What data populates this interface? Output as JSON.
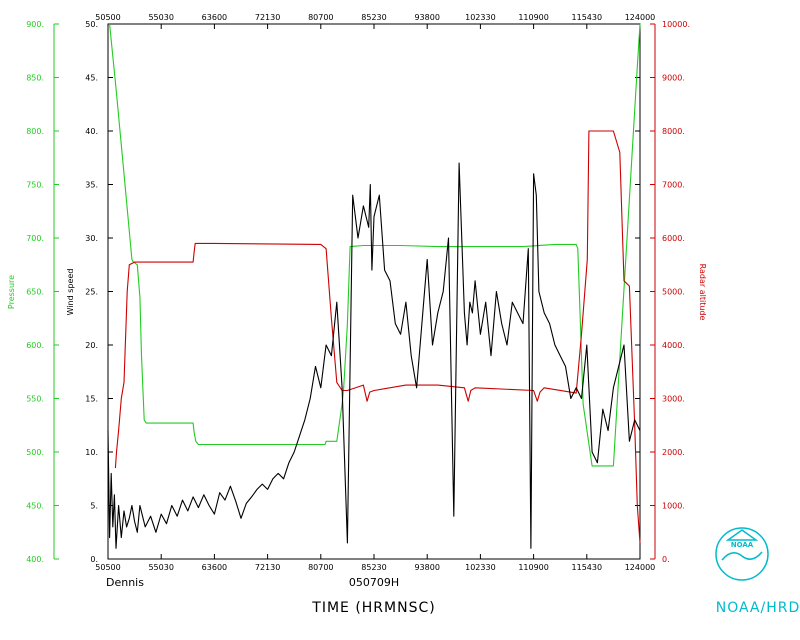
{
  "chart_data": {
    "type": "line",
    "title": "",
    "storm_name": "Dennis",
    "flight_id": "050709H",
    "xlabel": "TIME (HRMNSC)",
    "agency": "NOAA/HRD",
    "logo_text": "NOAA",
    "x_ticks": [
      "50500",
      "55030",
      "63600",
      "72130",
      "80700",
      "85230",
      "93800",
      "102330",
      "110900",
      "115430",
      "124000"
    ],
    "x_ticks_top": [
      "50500",
      "55030",
      "63600",
      "72130",
      "80700",
      "85230",
      "93800",
      "102330",
      "110900",
      "115430",
      "124000"
    ],
    "axes": {
      "pressure": {
        "label": "Pressure",
        "color": "#22cc22",
        "range": [
          400,
          900
        ],
        "ticks": [
          "400.",
          "450.",
          "500.",
          "550.",
          "600.",
          "650.",
          "700.",
          "750.",
          "800.",
          "850.",
          "900."
        ]
      },
      "wind": {
        "label": "Wind speed",
        "color": "#000000",
        "range": [
          0,
          50
        ],
        "ticks": [
          "0.",
          "5.",
          "10.",
          "15.",
          "20.",
          "25.",
          "30.",
          "35.",
          "40.",
          "45.",
          "50."
        ]
      },
      "radar": {
        "label": "Radar altitude",
        "color": "#cc0000",
        "range": [
          0,
          10000
        ],
        "ticks": [
          "0.",
          "1000.",
          "2000.",
          "3000.",
          "4000.",
          "5000.",
          "6000.",
          "7000.",
          "8000.",
          "9000.",
          "10000."
        ]
      }
    },
    "x_range": [
      0,
      100
    ],
    "series": [
      {
        "name": "Pressure",
        "axis": "pressure",
        "color": "#22cc22",
        "x": [
          0.3,
          1.5,
          3,
          4.5,
          4.7,
          5.5,
          6,
          6.3,
          6.8,
          7.2,
          8,
          12,
          16,
          16.2,
          16.5,
          17,
          30,
          40,
          40.8,
          41,
          43,
          44,
          44.3,
          45,
          45.5,
          48,
          55,
          62,
          70,
          78,
          84,
          88,
          88.3,
          88.8,
          89.3,
          91,
          91.5,
          95,
          99.5,
          100
        ],
        "y": [
          900,
          840,
          760,
          680,
          678,
          675,
          645,
          590,
          530,
          527,
          527,
          527,
          527,
          518,
          510,
          507,
          507,
          507,
          507,
          510,
          510,
          545,
          560,
          620,
          692,
          693,
          693,
          692,
          692,
          692,
          694,
          694,
          690,
          620,
          545,
          487,
          487,
          487,
          860,
          900
        ]
      },
      {
        "name": "Radar altitude",
        "axis": "radar",
        "color": "#cc0000",
        "x": [
          1.4,
          1.6,
          2,
          2.5,
          3,
          3.6,
          4,
          5,
          10,
          14,
          16,
          16.2,
          16.4,
          20,
          30,
          40,
          41,
          42,
          43,
          44,
          45,
          48,
          48.7,
          49.2,
          50,
          56,
          62,
          67,
          67.7,
          68.2,
          69,
          80,
          80.7,
          81.2,
          82,
          88,
          89,
          90.1,
          90.4,
          95,
          96.2,
          97,
          98,
          99,
          99.5,
          100
        ],
        "y": [
          1700,
          2000,
          2400,
          3000,
          3300,
          5000,
          5500,
          5550,
          5550,
          5550,
          5550,
          5750,
          5900,
          5900,
          5890,
          5880,
          5800,
          4500,
          3300,
          3150,
          3150,
          3250,
          2950,
          3120,
          3150,
          3250,
          3250,
          3200,
          2950,
          3150,
          3200,
          3150,
          2950,
          3120,
          3200,
          3100,
          4200,
          5600,
          8000,
          8000,
          7600,
          5200,
          5100,
          2500,
          1000,
          300
        ]
      },
      {
        "name": "Wind speed",
        "axis": "wind",
        "color": "#000000",
        "x": [
          0,
          0.3,
          0.6,
          0.9,
          1.2,
          1.5,
          2,
          2.5,
          3,
          3.5,
          4,
          4.5,
          5,
          5.5,
          6,
          7,
          8,
          9,
          10,
          11,
          12,
          13,
          14,
          15,
          16,
          17,
          18,
          19,
          20,
          21,
          22,
          23,
          24,
          25,
          26,
          27,
          28,
          29,
          30,
          31,
          32,
          33,
          34,
          35,
          36,
          37,
          38,
          39,
          40,
          41,
          42,
          43,
          44,
          45,
          46,
          47,
          48,
          49,
          49.3,
          49.6,
          50,
          51,
          52,
          53,
          54,
          55,
          56,
          57,
          58,
          59,
          60,
          61,
          62,
          63,
          64,
          65,
          66,
          67,
          67.5,
          68,
          68.5,
          69,
          70,
          71,
          72,
          73,
          74,
          75,
          76,
          77,
          78,
          79,
          79.5,
          80,
          80.5,
          81,
          82,
          83,
          84,
          85,
          86,
          87,
          88,
          89,
          90,
          91,
          92,
          93,
          94,
          95,
          96,
          97,
          98,
          99,
          100
        ],
        "y": [
          12,
          2,
          8,
          3,
          6,
          1,
          5,
          2,
          4.5,
          3,
          3.8,
          5,
          3.5,
          2.5,
          5,
          3,
          4,
          2.5,
          4.2,
          3.3,
          5,
          4,
          5.5,
          4.5,
          5.8,
          4.8,
          6,
          5,
          4.2,
          6.2,
          5.5,
          6.8,
          5.4,
          3.8,
          5.2,
          5.8,
          6.5,
          7,
          6.5,
          7.5,
          8,
          7.5,
          9,
          10,
          11.5,
          13,
          15,
          18,
          16,
          20,
          19,
          24,
          16,
          1.5,
          34,
          30,
          33,
          31,
          35,
          27,
          32,
          34,
          27,
          26,
          22,
          21,
          24,
          19,
          16,
          22,
          28,
          20,
          23,
          25,
          30,
          4,
          37,
          23,
          20,
          24,
          23,
          26,
          21,
          24,
          19,
          25,
          22,
          20,
          24,
          23,
          22,
          29,
          1,
          36,
          34,
          25,
          23,
          22,
          20,
          19,
          18,
          15,
          16,
          15,
          20,
          10,
          9,
          14,
          12,
          16,
          18,
          20,
          11,
          13,
          12
        ],
        "y_min_spikes": []
      }
    ],
    "grid": false,
    "legend": "none"
  }
}
